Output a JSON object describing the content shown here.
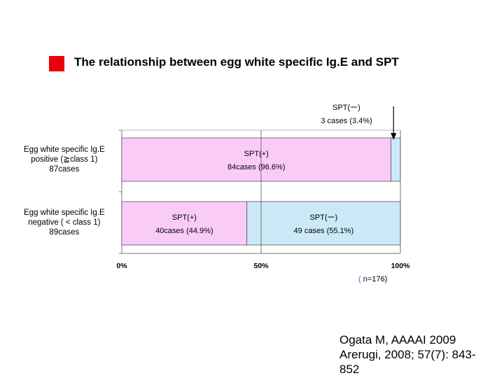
{
  "title": "The relationship between egg white  specific Ig.E and SPT",
  "colors": {
    "title_marker": "#e8000b",
    "positive": "#fbcbf8",
    "negative": "#cce9f8"
  },
  "chart_data": {
    "type": "bar",
    "orientation": "horizontal-stacked-100",
    "categories": [
      {
        "lines": [
          "Egg white specific Ig.E",
          "positive (≧class 1)",
          "87cases"
        ]
      },
      {
        "lines": [
          "Egg white specific Ig.E",
          "negative ( < class 1)",
          "89cases"
        ]
      }
    ],
    "series": [
      {
        "key": "pos",
        "color": "#fbcbf8",
        "values": [
          96.6,
          44.9
        ],
        "labels": [
          [
            "SPT(+)",
            "84cases (96.6%)"
          ],
          [
            "SPT(+)",
            "40cases (44.9%)"
          ]
        ]
      },
      {
        "key": "neg",
        "color": "#cce9f8",
        "values": [
          3.4,
          55.1
        ],
        "labels": [
          [
            "",
            ""
          ],
          [
            "SPT(ー)",
            "49 cases (55.1%)"
          ]
        ]
      }
    ],
    "annotation": {
      "lines": [
        "SPT(ー)",
        "3 cases (3.4%)"
      ]
    },
    "x_ticks": [
      "0%",
      "50%",
      "100%"
    ],
    "xlim": [
      0,
      100
    ],
    "n_label": {
      "paren": "(",
      "text": " n=176)"
    }
  },
  "citation": {
    "lines": [
      "Ogata M, AAAAI 2009",
      "Arerugi, 2008; 57(7): 843-",
      "852"
    ]
  }
}
